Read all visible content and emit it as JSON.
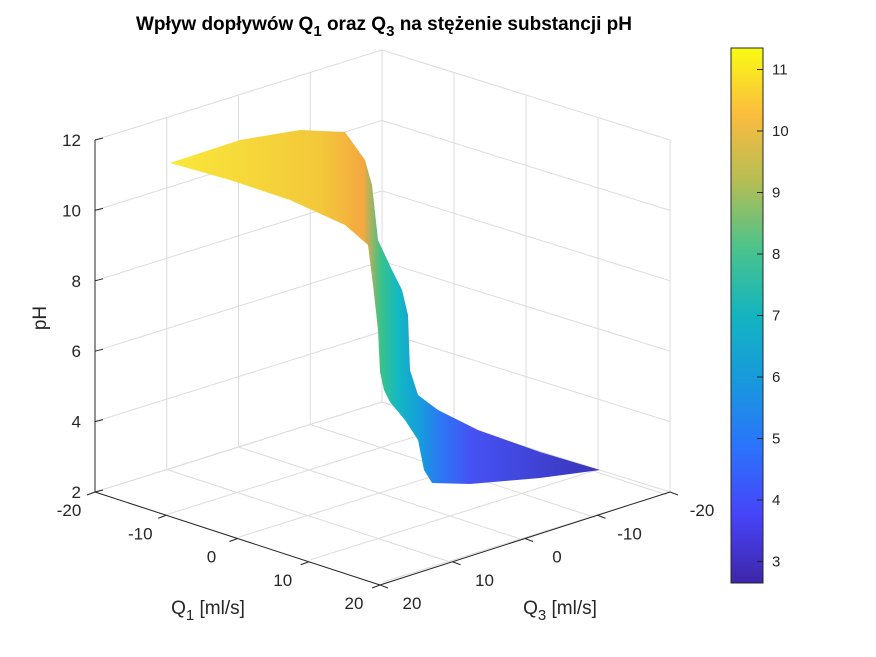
{
  "chart_data": {
    "type": "surface",
    "title": {
      "pre": "Wpływ dopływów Q",
      "sub1": "1",
      "mid": " oraz Q",
      "sub2": "3",
      "post": " na stężenie substancji pH"
    },
    "xlabel": {
      "pre": "Q",
      "sub": "1",
      "post": " [ml/s]"
    },
    "ylabel": {
      "pre": "Q",
      "sub": "3",
      "post": " [ml/s]"
    },
    "zlabel": "pH",
    "xlim": [
      -20,
      20
    ],
    "ylim": [
      -20,
      20
    ],
    "zlim": [
      2,
      12
    ],
    "x_ticks": [
      "-20",
      "-10",
      "0",
      "10",
      "20"
    ],
    "y_ticks": [
      "20",
      "10",
      "0",
      "-10",
      "-20"
    ],
    "z_ticks": [
      "2",
      "4",
      "6",
      "8",
      "10",
      "12"
    ],
    "grid": true,
    "colormap": "parula",
    "colorbar": {
      "location": "right",
      "range": [
        2.65,
        11.35
      ],
      "ticks": [
        "3",
        "4",
        "5",
        "6",
        "7",
        "8",
        "9",
        "10",
        "11"
      ]
    },
    "surface_description": "pH as a function of Q1 and Q3; a smooth sigmoid ridge with plateau near pH 11.3 at low Q and near pH 2.7 at high Q, with a secondary step near pH 7.5 and pH 4.5",
    "profile_pH": [
      [
        0.0,
        11.3
      ],
      [
        0.28,
        10.9
      ],
      [
        0.38,
        10.4
      ],
      [
        0.42,
        8.8
      ],
      [
        0.45,
        7.6
      ],
      [
        0.49,
        7.2
      ],
      [
        0.52,
        5.3
      ],
      [
        0.56,
        4.7
      ],
      [
        0.6,
        4.3
      ],
      [
        0.64,
        3.6
      ],
      [
        0.7,
        3.2
      ],
      [
        0.8,
        2.9
      ],
      [
        1.0,
        2.65
      ]
    ]
  }
}
